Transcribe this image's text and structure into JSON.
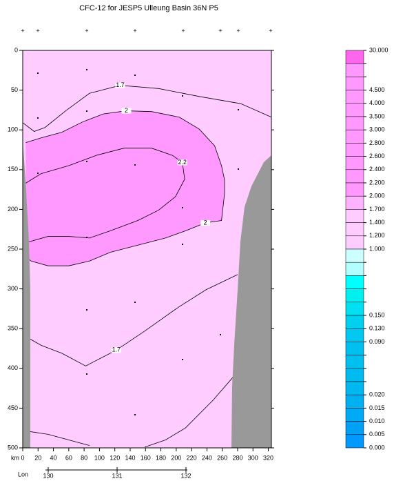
{
  "chart_data": {
    "type": "contour",
    "title": "CFC-12 for JESP5 Ulleung Basin 36N P5",
    "x_label": "km",
    "xlim": [
      0,
      324
    ],
    "xticks": [
      0,
      20,
      40,
      60,
      80,
      100,
      120,
      140,
      160,
      180,
      200,
      220,
      240,
      260,
      280,
      300,
      320
    ],
    "ylim": [
      0,
      500
    ],
    "y_inverted": true,
    "yticks": [
      0,
      50,
      100,
      150,
      200,
      250,
      300,
      350,
      400,
      450,
      500
    ],
    "lon_label": "Lon",
    "lonlim": [
      129.96,
      132.02
    ],
    "lonticks": [
      130,
      131,
      132
    ],
    "plot_color": "#ffccff",
    "contours": [
      {
        "label": "1.7",
        "x": [
          0,
          15,
          29,
          56,
          87,
          127,
          177,
          230,
          284,
          324
        ],
        "y": [
          91,
          102,
          97,
          76,
          54,
          44,
          48,
          58,
          67,
          84
        ]
      },
      {
        "label": "2",
        "fill": "#ff99ff",
        "x": [
          4,
          24,
          51,
          78,
          105,
          135,
          168,
          204,
          230,
          250,
          259
        ],
        "y": [
          116,
          110,
          103,
          90,
          80,
          76,
          77,
          84,
          99,
          120,
          145
        ]
      },
      {
        "label": "2",
        "fill": "#ff99ff",
        "x": [
          259,
          263,
          263,
          259,
          238,
          212,
          186,
          150,
          114
        ],
        "y": [
          145,
          163,
          180,
          214,
          217,
          227,
          236,
          245,
          254
        ]
      },
      {
        "fill": "#ff99ff",
        "x": [
          114,
          87,
          60,
          33,
          11,
          4
        ],
        "y": [
          254,
          265,
          271,
          271,
          265,
          260
        ]
      },
      {
        "label": "2.2",
        "x": [
          96,
          132,
          168,
          195,
          208,
          211,
          199,
          177,
          150
        ],
        "y": [
          132,
          123,
          123,
          132,
          141,
          162,
          184,
          201,
          214
        ]
      },
      {
        "x": [
          4,
          24,
          60,
          96
        ],
        "y": [
          167,
          155,
          145,
          132
        ]
      },
      {
        "x": [
          150,
          114,
          87,
          60,
          33,
          11,
          4
        ],
        "y": [
          214,
          227,
          236,
          234,
          234,
          240,
          242
        ]
      },
      {
        "label": "1.7",
        "x": [
          4,
          24,
          51,
          82,
          122,
          159,
          203,
          239,
          280
        ],
        "y": [
          360,
          371,
          381,
          397,
          377,
          353,
          323,
          301,
          282
        ]
      },
      {
        "x": [
          6,
          33,
          60,
          87
        ],
        "y": [
          479,
          483,
          490,
          497
        ]
      },
      {
        "x": [
          159,
          186,
          212,
          248,
          275
        ],
        "y": [
          499,
          490,
          475,
          440,
          410
        ]
      }
    ],
    "colorbar": {
      "levels": [
        {
          "value": 30,
          "label": "30.000"
        },
        null,
        null,
        {
          "value": 4.5,
          "label": "4.500"
        },
        {
          "value": 4,
          "label": "4.000"
        },
        {
          "value": 3.5,
          "label": "3.500"
        },
        {
          "value": 3,
          "label": "3.000"
        },
        {
          "value": 2.8,
          "label": "2.800"
        },
        {
          "value": 2.6,
          "label": "2.600"
        },
        {
          "value": 2.4,
          "label": "2.400"
        },
        {
          "value": 2.2,
          "label": "2.200"
        },
        {
          "value": 2,
          "label": "2.000"
        },
        {
          "value": 1.7,
          "label": "1.700"
        },
        {
          "value": 1.4,
          "label": "1.400"
        },
        {
          "value": 1.2,
          "label": "1.200"
        },
        {
          "value": 1,
          "label": "1.000"
        },
        null,
        null,
        null,
        null,
        {
          "value": 0.15,
          "label": "0.150"
        },
        {
          "value": 0.13,
          "label": "0.130"
        },
        {
          "value": 0.09,
          "label": "0.090"
        },
        null,
        null,
        null,
        {
          "value": 0.02,
          "label": "0.020"
        },
        {
          "value": 0.015,
          "label": "0.015"
        },
        {
          "value": 0.01,
          "label": "0.010"
        },
        {
          "value": 0.005,
          "label": "0.005"
        },
        {
          "value": 0,
          "label": "0.000"
        }
      ],
      "colors": [
        "#ff66ee",
        "#ff99ff",
        "#ff99ff",
        "#ff99ff",
        "#ff99ff",
        "#ff99ff",
        "#ff99ff",
        "#ff99ff",
        "#ff99ff",
        "#ff99ff",
        "#ff99ff",
        "#ffb3ff",
        "#ffccff",
        "#ffccff",
        "#ffccff",
        "#ccffff",
        "#b3ffff",
        "#00ffff",
        "#00f0f0",
        "#00e0f0",
        "#00d0f0",
        "#00c8f0",
        "#00c0f0",
        "#00c0f0",
        "#00bbf0",
        "#00b8f0",
        "#00b0f0",
        "#00aaf5",
        "#00a0f5",
        "#0099ff"
      ]
    }
  }
}
